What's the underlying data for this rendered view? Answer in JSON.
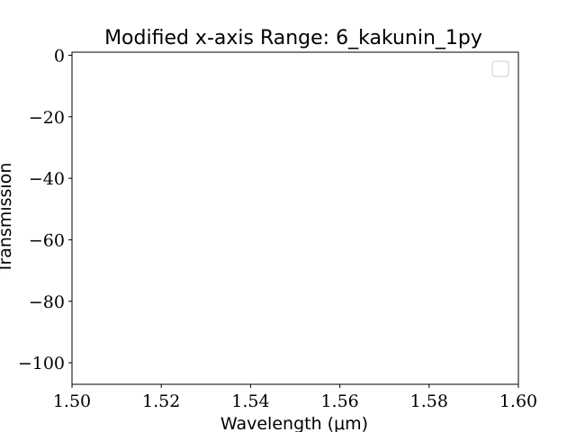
{
  "chart_data": {
    "type": "line",
    "title": "Modified x-axis Range: 6_kakunin_1py",
    "xlabel": "Wavelength (μm)",
    "ylabel": "Transmission",
    "xlim": [
      1.5,
      1.6
    ],
    "ylim": [
      -107,
      1
    ],
    "x_ticks": [
      1.5,
      1.52,
      1.54,
      1.56,
      1.58,
      1.6
    ],
    "x_tick_labels": [
      "1.50",
      "1.52",
      "1.54",
      "1.56",
      "1.58",
      "1.60"
    ],
    "y_ticks": [
      0,
      -20,
      -40,
      -60,
      -80,
      -100
    ],
    "y_tick_labels": [
      "0",
      "−20",
      "−40",
      "−60",
      "−80",
      "−100"
    ],
    "series": [],
    "legend": {
      "location": "top-right",
      "entries": []
    },
    "grid": false,
    "colors": {
      "axes": "#000000",
      "legend_border": "#cccccc",
      "background": "#ffffff"
    }
  }
}
